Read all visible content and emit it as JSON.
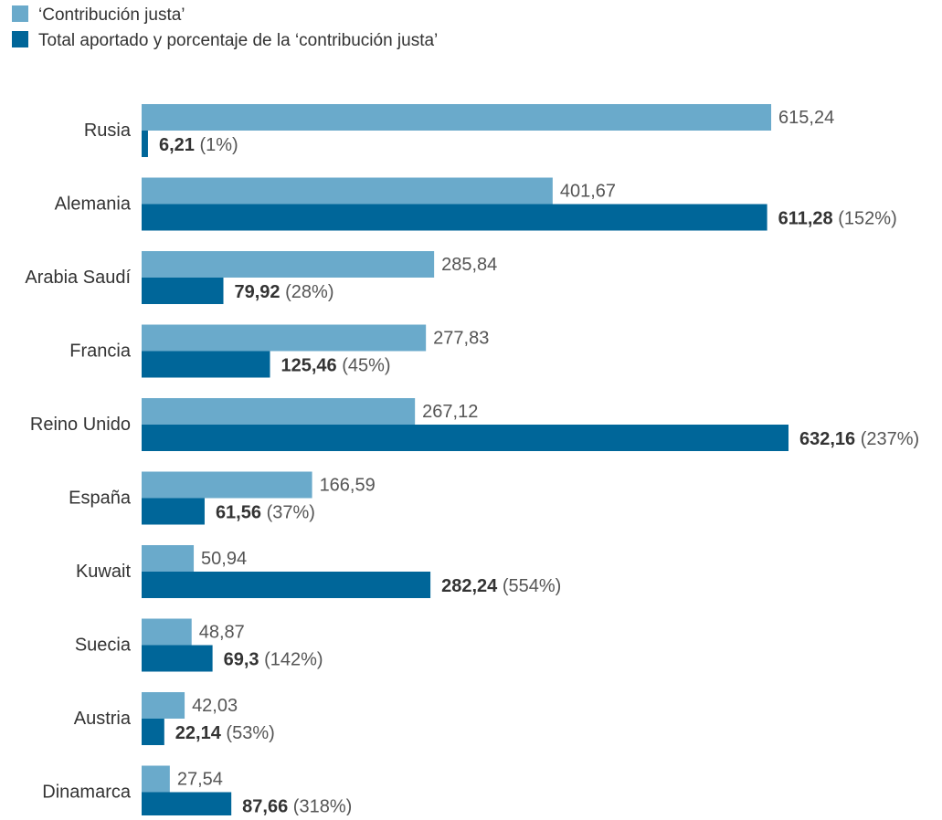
{
  "chart_data": {
    "type": "bar",
    "orientation": "horizontal",
    "legend": {
      "placement": "top-left",
      "items": [
        {
          "label": "‘Contribución justa’",
          "color": "#6aaacb"
        },
        {
          "label": "Total aportado y porcentaje de la ‘contribución justa’",
          "color": "#006699"
        }
      ]
    },
    "categories": [
      "Rusia",
      "Alemania",
      "Arabia Saudí",
      "Francia",
      "Reino Unido",
      "España",
      "Kuwait",
      "Suecia",
      "Austria",
      "Dinamarca"
    ],
    "series": [
      {
        "name": "‘Contribución justa’",
        "color": "#6aaacb",
        "values": [
          615.24,
          401.67,
          285.84,
          277.83,
          267.12,
          166.59,
          50.94,
          48.87,
          42.03,
          27.54
        ],
        "labels": [
          "615,24",
          "401,67",
          "285,84",
          "277,83",
          "267,12",
          "166,59",
          "50,94",
          "48,87",
          "42,03",
          "27,54"
        ]
      },
      {
        "name": "Total aportado y porcentaje de la ‘contribución justa’",
        "color": "#006699",
        "values": [
          6.21,
          611.28,
          79.92,
          125.46,
          632.16,
          61.56,
          282.24,
          69.3,
          22.14,
          87.66
        ],
        "labels": [
          "6,21",
          "611,28",
          "79,92",
          "125,46",
          "632,16",
          "61,56",
          "282,24",
          "69,3",
          "22,14",
          "87,66"
        ],
        "percent_labels": [
          "(1%)",
          "(152%)",
          "(28%)",
          "(45%)",
          "(237%)",
          "(37%)",
          "(554%)",
          "(142%)",
          "(53%)",
          "(318%)"
        ]
      }
    ],
    "xlim": [
      0,
      632.16
    ],
    "grid": false,
    "axes_visible": false
  }
}
